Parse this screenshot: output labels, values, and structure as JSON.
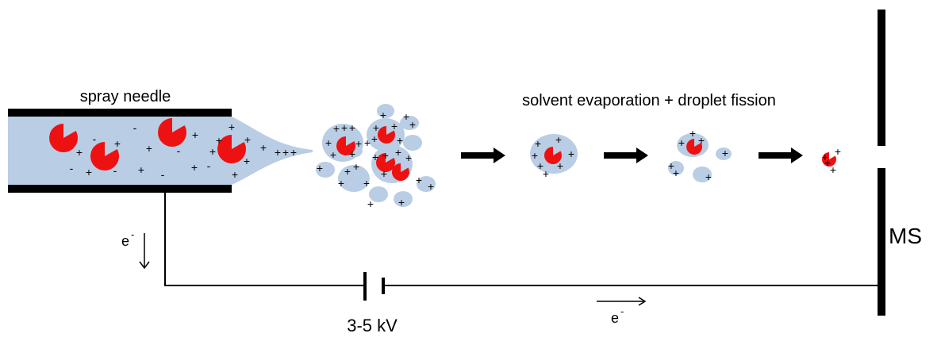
{
  "labels": {
    "needle": "spray needle",
    "process": "solvent evaporation + droplet fission",
    "detector": "MS",
    "voltage": "3-5 kV",
    "electron_base": "e",
    "electron_sup": "-"
  },
  "glyphs": {
    "plus": "+",
    "minus": "-"
  },
  "colors": {
    "liquid": "#b9cde5",
    "analyte": "#ee1111",
    "wall": "#000000",
    "wire": "#000000"
  }
}
